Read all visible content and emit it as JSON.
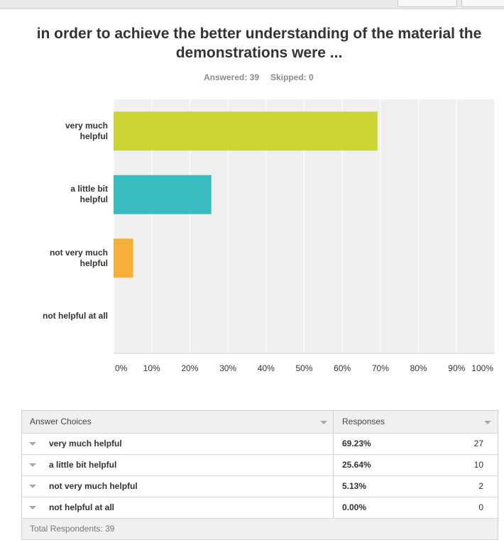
{
  "chart_data": {
    "type": "hbar",
    "title": "in order to achieve the better understanding of the material the demonstrations were ...",
    "answered": "Answered: 39",
    "skipped": "Skipped: 0",
    "categories": [
      "very much helpful",
      "a little bit helpful",
      "not very much helpful",
      "not helpful at all"
    ],
    "values": [
      69.23,
      25.64,
      5.13,
      0
    ],
    "colors": [
      "#cdd436",
      "#38bcbf",
      "#f6af3a",
      "#999999"
    ],
    "xlim": [
      0,
      100
    ],
    "xticks": [
      {
        "value": 0,
        "label": "0%"
      },
      {
        "value": 10,
        "label": "10%"
      },
      {
        "value": 20,
        "label": "20%"
      },
      {
        "value": 30,
        "label": "30%"
      },
      {
        "value": 40,
        "label": "40%"
      },
      {
        "value": 50,
        "label": "50%"
      },
      {
        "value": 60,
        "label": "60%"
      },
      {
        "value": 70,
        "label": "70%"
      },
      {
        "value": 80,
        "label": "80%"
      },
      {
        "value": 90,
        "label": "90%"
      },
      {
        "value": 100,
        "label": "100%"
      }
    ],
    "grid": true
  },
  "table": {
    "headers": [
      "Answer Choices",
      "Responses"
    ],
    "rows": [
      [
        "very much helpful",
        "69.23%",
        "27"
      ],
      [
        "a little bit helpful",
        "25.64%",
        "10"
      ],
      [
        "not very much helpful",
        "5.13%",
        "2"
      ],
      [
        "not helpful at all",
        "0.00%",
        "0"
      ]
    ],
    "footer": "Total Respondents: 39"
  }
}
